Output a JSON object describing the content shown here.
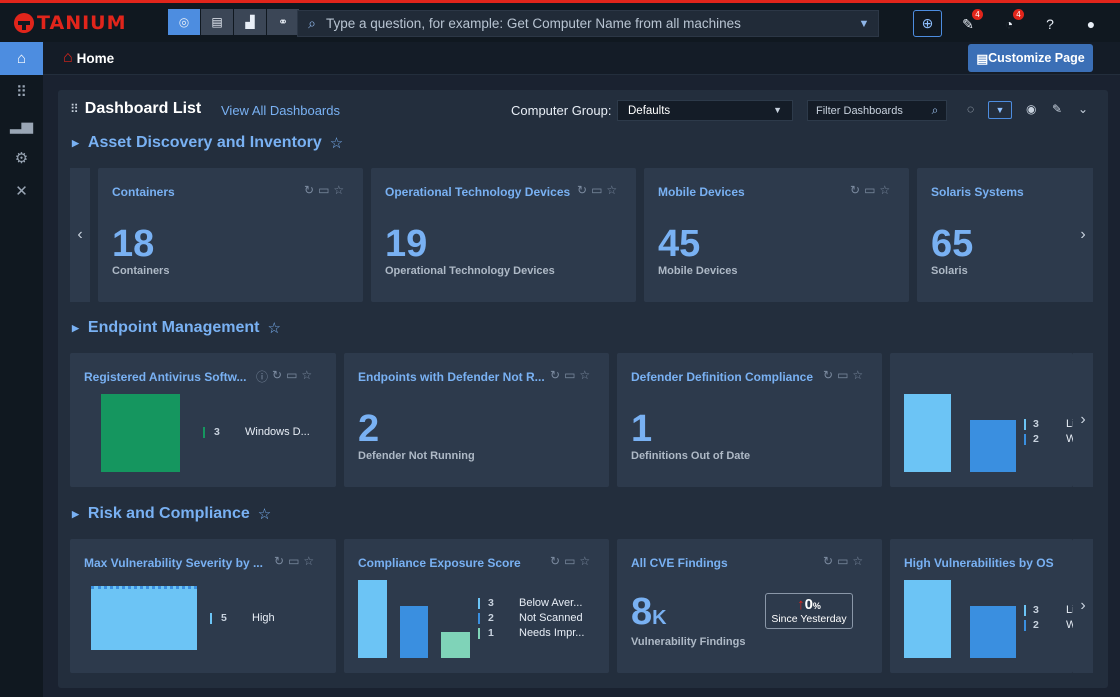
{
  "app": {
    "brand": "TANIUM"
  },
  "search": {
    "placeholder": "Type a question, for example: Get Computer Name from all machines"
  },
  "notifications": {
    "alerts_count": "4",
    "actions_count": "4"
  },
  "header": {
    "home_label": "Home",
    "customize_label": "Customize Page"
  },
  "dashboard_list": {
    "title": "Dashboard List",
    "view_all": "View All Dashboards",
    "computer_group_label": "Computer Group:",
    "computer_group_value": "Defaults",
    "filter_placeholder": "Filter Dashboards"
  },
  "sections": [
    {
      "title": "Asset Discovery and Inventory",
      "cards": [
        {
          "title": "Containers",
          "value": "18",
          "label": "Containers"
        },
        {
          "title": "Operational Technology Devices",
          "value": "19",
          "label": "Operational Technology Devices"
        },
        {
          "title": "Mobile Devices",
          "value": "45",
          "label": "Mobile Devices"
        },
        {
          "title": "Solaris Systems",
          "value": "65",
          "label": "Solaris"
        }
      ]
    },
    {
      "title": "Endpoint Management",
      "cards": [
        {
          "title": "Registered Antivirus Softw...",
          "legend": [
            {
              "value": "3",
              "name": "Windows D..."
            }
          ]
        },
        {
          "title": "Endpoints with Defender Not R...",
          "value": "2",
          "label": "Defender Not Running"
        },
        {
          "title": "Defender Definition Compliance",
          "value": "1",
          "label": "Definitions Out of Date"
        },
        {
          "title": "",
          "legend": [
            {
              "value": "3",
              "name": "Li"
            },
            {
              "value": "2",
              "name": "W"
            }
          ]
        }
      ]
    },
    {
      "title": "Risk and Compliance",
      "cards": [
        {
          "title": "Max Vulnerability Severity by ...",
          "legend": [
            {
              "value": "5",
              "name": "High"
            }
          ]
        },
        {
          "title": "Compliance Exposure Score",
          "legend": [
            {
              "value": "3",
              "name": "Below Aver..."
            },
            {
              "value": "2",
              "name": "Not Scanned"
            },
            {
              "value": "1",
              "name": "Needs Impr..."
            }
          ]
        },
        {
          "title": "All CVE Findings",
          "value": "8",
          "unit": "K",
          "label": "Vulnerability Findings",
          "change": "0",
          "change_unit": "%",
          "change_label": "Since Yesterday"
        },
        {
          "title": "High Vulnerabilities by OS",
          "legend": [
            {
              "value": "3",
              "name": "Li"
            },
            {
              "value": "2",
              "name": "W"
            }
          ]
        }
      ]
    }
  ],
  "colors": {
    "accent": "#4d8de0",
    "brand": "#e1251b",
    "bar_light": "#6cc4f5",
    "bar_mid": "#3a8fe0",
    "bar_green": "#15965f",
    "bar_teal": "#7fd3b8"
  },
  "icons": [
    "tanium-logo",
    "target-icon",
    "device-icon",
    "chart-icon",
    "link-icon",
    "search-icon",
    "chevron-down-icon",
    "globe-icon",
    "pen-icon",
    "gauge-icon",
    "help-icon",
    "user-icon",
    "home-icon",
    "apps-icon",
    "reports-icon",
    "gears-icon",
    "tools-icon",
    "refresh-icon",
    "monitor-icon",
    "star-icon",
    "info-icon",
    "eye-icon",
    "chevron-left-icon",
    "chevron-right-icon",
    "caret-right-icon"
  ]
}
